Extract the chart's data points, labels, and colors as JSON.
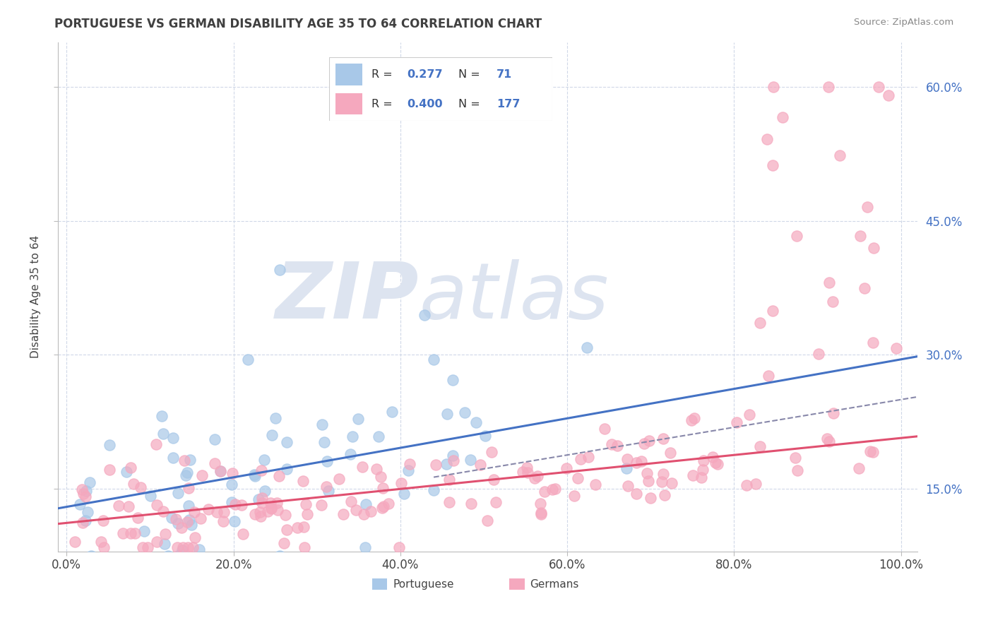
{
  "title": "PORTUGUESE VS GERMAN DISABILITY AGE 35 TO 64 CORRELATION CHART",
  "source": "Source: ZipAtlas.com",
  "ylabel": "Disability Age 35 to 64",
  "xlim": [
    -0.01,
    1.02
  ],
  "ylim": [
    0.08,
    0.65
  ],
  "xticks": [
    0.0,
    0.2,
    0.4,
    0.6,
    0.8,
    1.0
  ],
  "xtick_labels": [
    "0.0%",
    "20.0%",
    "40.0%",
    "60.0%",
    "80.0%",
    "100.0%"
  ],
  "yticks": [
    0.15,
    0.3,
    0.45,
    0.6
  ],
  "ytick_labels": [
    "15.0%",
    "30.0%",
    "45.0%",
    "60.0%"
  ],
  "portuguese_R": 0.277,
  "portuguese_N": 71,
  "german_R": 0.4,
  "german_N": 177,
  "portuguese_color": "#a8c8e8",
  "german_color": "#f5a8be",
  "portuguese_line_color": "#4472c4",
  "german_line_color": "#e05070",
  "dashed_line_color": "#8888aa",
  "background_color": "#ffffff",
  "grid_color": "#d0d8e8",
  "title_color": "#404040",
  "watermark_color": "#dde4f0",
  "legend_text_color": "#4472c4",
  "legend_label_color": "#333333",
  "pt_reg_slope": 0.165,
  "pt_reg_int": 0.13,
  "ger_reg_slope": 0.095,
  "ger_reg_int": 0.112,
  "dash_slope": 0.155,
  "dash_int": 0.095,
  "portuguese_seed": 7,
  "german_seed": 13
}
